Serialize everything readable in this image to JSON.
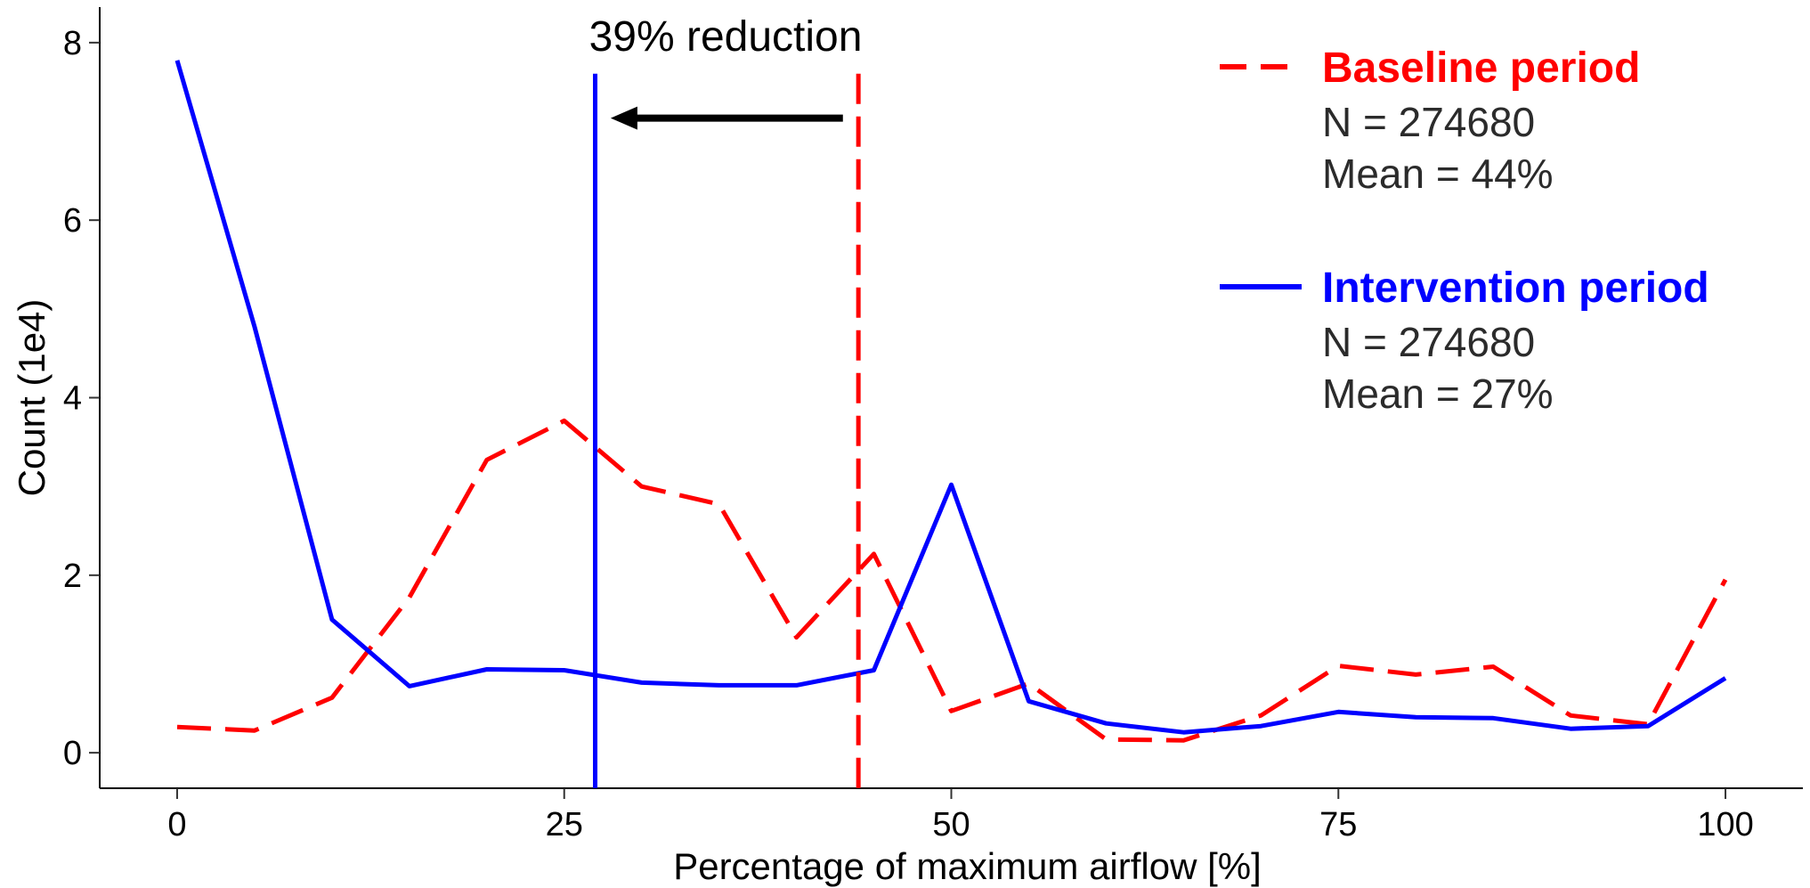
{
  "chart_data": {
    "type": "line",
    "title": "",
    "xlabel": "Percentage of maximum airflow [%]",
    "ylabel": "Count (1e4)",
    "xlim": [
      -5,
      105
    ],
    "ylim": [
      -0.4,
      8.4
    ],
    "xticks": [
      0,
      25,
      50,
      75,
      100
    ],
    "yticks": [
      0,
      2,
      4,
      6,
      8
    ],
    "x": [
      0,
      5,
      10,
      15,
      20,
      25,
      30,
      35,
      40,
      45,
      50,
      55,
      60,
      65,
      70,
      75,
      80,
      85,
      90,
      95,
      100
    ],
    "series": [
      {
        "name": "Baseline period",
        "color": "#ff0000",
        "dash": "dashed",
        "values": [
          0.29,
          0.25,
          0.62,
          1.75,
          3.3,
          3.74,
          3.0,
          2.8,
          1.3,
          2.24,
          0.47,
          0.78,
          0.15,
          0.14,
          0.42,
          0.98,
          0.88,
          0.97,
          0.42,
          0.32,
          1.95
        ],
        "n_text": "N = 274680",
        "mean_text": "Mean = 44%",
        "mean": 44
      },
      {
        "name": "Intervention period",
        "color": "#0000ff",
        "dash": "solid",
        "values": [
          7.8,
          4.8,
          1.5,
          0.75,
          0.94,
          0.93,
          0.79,
          0.76,
          0.76,
          0.93,
          3.02,
          0.58,
          0.33,
          0.23,
          0.3,
          0.46,
          0.4,
          0.39,
          0.27,
          0.3,
          0.84
        ],
        "n_text": "N = 274680",
        "mean_text": "Mean = 27%",
        "mean": 27
      }
    ],
    "annotation": {
      "text": "39% reduction",
      "arrow_from": 43,
      "arrow_to": 28,
      "arrow_y": 7.15
    },
    "legend_position": "top-right",
    "grid": false
  }
}
